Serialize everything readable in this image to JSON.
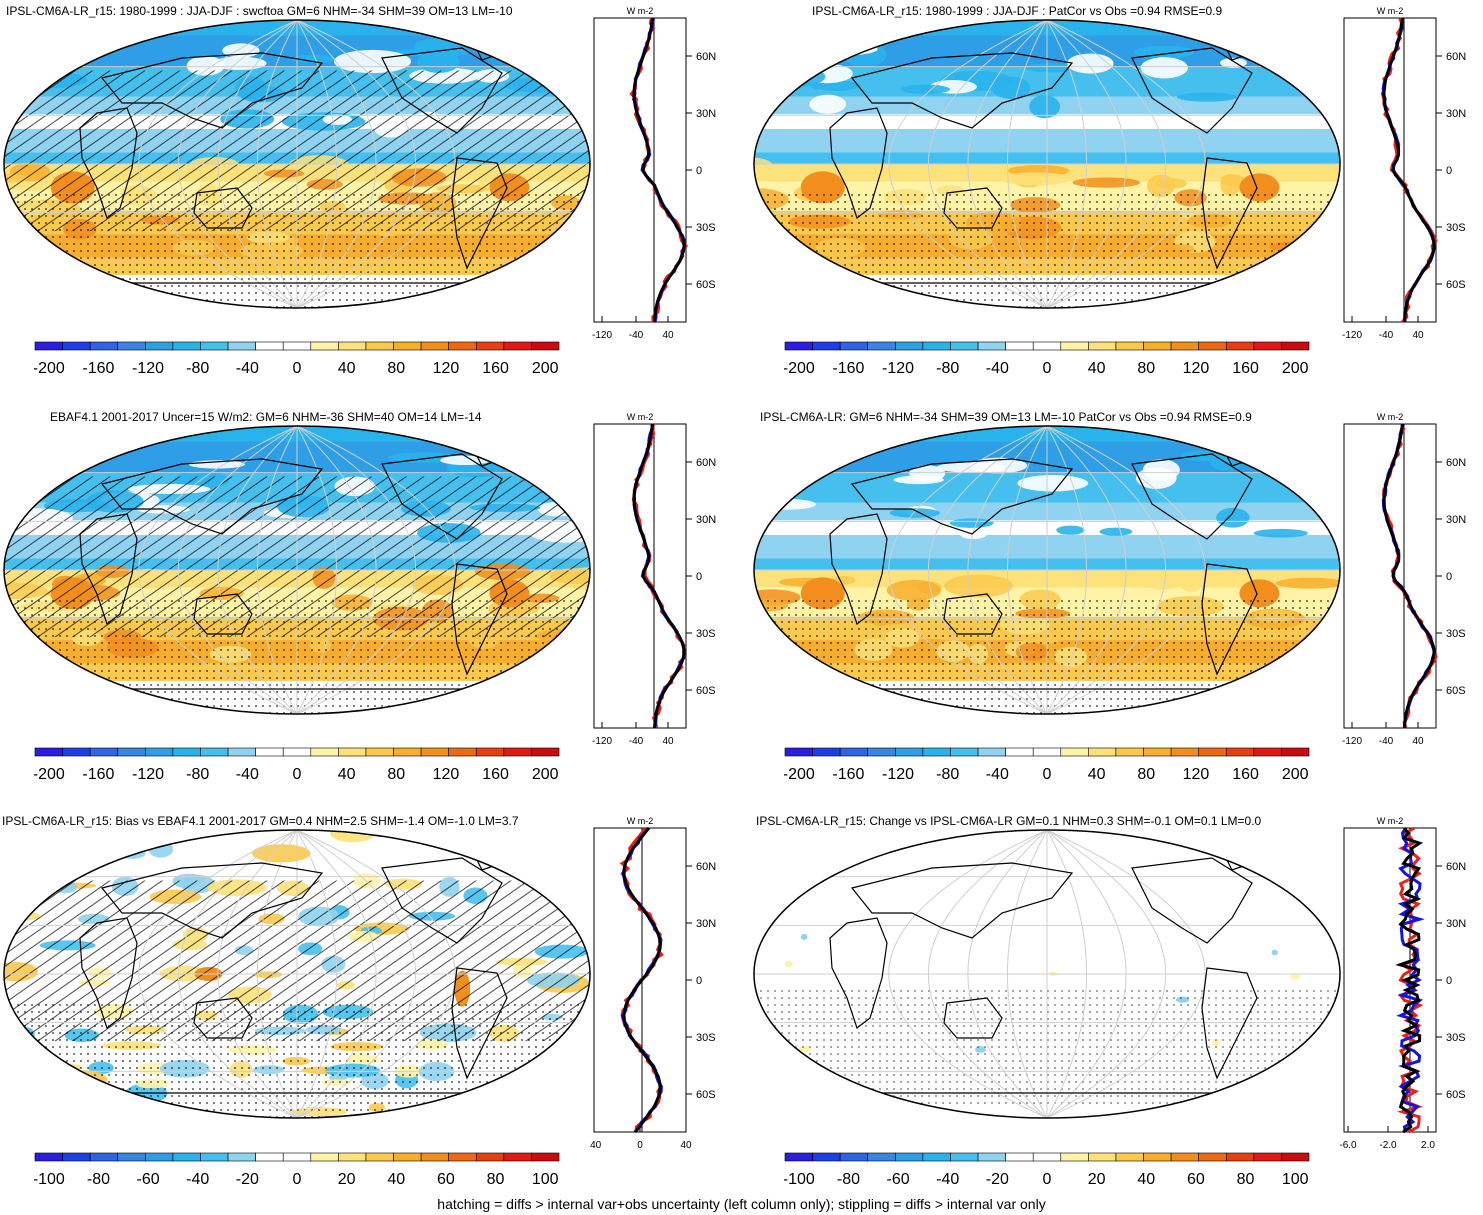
{
  "colors": {
    "scale": [
      "#2a1fe0",
      "#1f3fe6",
      "#2f64e4",
      "#3a85e2",
      "#2e9fe6",
      "#28b3ec",
      "#45c0ee",
      "#8fd3f0",
      "#ffffff",
      "#ffffff",
      "#fff3a8",
      "#fde17a",
      "#fbc94c",
      "#f8ae2c",
      "#f28e1c",
      "#ec6a14",
      "#e64012",
      "#df1a14",
      "#c80c10"
    ],
    "land_outline": "#000000",
    "graticule": "#cfcfcf",
    "series_red": "#e8201a",
    "series_blue": "#1414e0",
    "series_black": "#000000"
  },
  "panels": [
    {
      "id": "p1",
      "title": "IPSL-CM6A-LR_r15: 1980-1999 : JJA-DJF : swcftoa GM=6 NHM=-34 SHM=39 OM=13 LM=-10",
      "colorbar_labels": [
        "-200",
        "-160",
        "-120",
        "-80",
        "-40",
        "0",
        "40",
        "80",
        "120",
        "160",
        "200"
      ],
      "profile": {
        "unit": "W m-2",
        "x_ticks": [
          "-120",
          "-40",
          "40"
        ],
        "lat_labels": [
          "60N",
          "30N",
          "0",
          "30S",
          "60S"
        ]
      }
    },
    {
      "id": "p2",
      "title": "IPSL-CM6A-LR_r15: 1980-1999 : JJA-DJF : PatCor vs Obs =0.94 RMSE=0.9",
      "colorbar_labels": [
        "-200",
        "-160",
        "-120",
        "-80",
        "-40",
        "0",
        "40",
        "80",
        "120",
        "160",
        "200"
      ],
      "profile": {
        "unit": "W m-2",
        "x_ticks": [
          "-120",
          "-40",
          "40"
        ],
        "lat_labels": [
          "60N",
          "30N",
          "0",
          "30S",
          "60S"
        ]
      }
    },
    {
      "id": "p3",
      "title": "EBAF4.1 2001-2017 Uncer=15 W/m2: GM=6 NHM=-36 SHM=40 OM=14 LM=-14",
      "colorbar_labels": [
        "-200",
        "-160",
        "-120",
        "-80",
        "-40",
        "0",
        "40",
        "80",
        "120",
        "160",
        "200"
      ],
      "profile": {
        "unit": "W m-2",
        "x_ticks": [
          "-120",
          "-40",
          "40"
        ],
        "lat_labels": [
          "60N",
          "30N",
          "0",
          "30S",
          "60S"
        ]
      }
    },
    {
      "id": "p4",
      "title": "IPSL-CM6A-LR: GM=6 NHM=-34 SHM=39 OM=13 LM=-10 PatCor vs Obs =0.94 RMSE=0.9",
      "colorbar_labels": [
        "-200",
        "-160",
        "-120",
        "-80",
        "-40",
        "0",
        "40",
        "80",
        "120",
        "160",
        "200"
      ],
      "profile": {
        "unit": "W m-2",
        "x_ticks": [
          "-120",
          "-40",
          "40"
        ],
        "lat_labels": [
          "60N",
          "30N",
          "0",
          "30S",
          "60S"
        ]
      }
    },
    {
      "id": "p5",
      "title": "IPSL-CM6A-LR_r15: Bias vs EBAF4.1 2001-2017 GM=0.4 NHM=2.5 SHM=-1.4 OM=-1.0 LM=3.7",
      "colorbar_labels": [
        "-100",
        "-80",
        "-60",
        "-40",
        "-20",
        "0",
        "20",
        "40",
        "60",
        "80",
        "100"
      ],
      "profile": {
        "unit": "W m-2",
        "x_ticks": [
          "-40",
          "0",
          "40"
        ],
        "lat_labels": [
          "60N",
          "30N",
          "0",
          "30S",
          "60S"
        ]
      }
    },
    {
      "id": "p6",
      "title": "IPSL-CM6A-LR_r15: Change vs IPSL-CM6A-LR GM=0.1 NHM=0.3 SHM=-0.1 OM=0.1 LM=0.0",
      "colorbar_labels": [
        "-100",
        "-80",
        "-60",
        "-40",
        "-20",
        "0",
        "20",
        "40",
        "60",
        "80",
        "100"
      ],
      "profile": {
        "unit": "W m-2",
        "x_ticks": [
          "-6.0",
          "-2.0",
          "2.0"
        ],
        "lat_labels": [
          "60N",
          "30N",
          "0",
          "30S",
          "60S"
        ]
      }
    }
  ],
  "footer": "hatching = diffs > internal var+obs uncertainty (left column only); stippling = diffs > internal var only",
  "chart_data": [
    {
      "type": "heatmap",
      "title": "IPSL-CM6A-LR_r15: 1980-1999 : JJA-DJF : swcftoa GM=6 NHM=-34 SHM=39 OM=13 LM=-10",
      "stats": {
        "GM": 6,
        "NHM": -34,
        "SHM": 39,
        "OM": 13,
        "LM": -10
      },
      "colorbar": [
        -200,
        200
      ],
      "zonal_mean_profile": {
        "lat": [
          80,
          60,
          30,
          0,
          -30,
          -60,
          -80
        ],
        "x_ticks": [
          -120,
          -40,
          40
        ]
      }
    },
    {
      "type": "heatmap",
      "title": "IPSL-CM6A-LR_r15: 1980-1999 : JJA-DJF : PatCor vs Obs =0.94 RMSE=0.9",
      "stats": {
        "PatCor": 0.94,
        "RMSE": 0.9
      },
      "colorbar": [
        -200,
        200
      ],
      "zonal_mean_profile": {
        "lat": [
          80,
          60,
          30,
          0,
          -30,
          -60,
          -80
        ],
        "x_ticks": [
          -120,
          -40,
          40
        ]
      }
    },
    {
      "type": "heatmap",
      "title": "EBAF4.1 2001-2017 Uncer=15 W/m2: GM=6 NHM=-36 SHM=40 OM=14 LM=-14",
      "stats": {
        "Uncer": 15,
        "GM": 6,
        "NHM": -36,
        "SHM": 40,
        "OM": 14,
        "LM": -14
      },
      "colorbar": [
        -200,
        200
      ],
      "zonal_mean_profile": {
        "lat": [
          80,
          60,
          30,
          0,
          -30,
          -60,
          -80
        ],
        "x_ticks": [
          -120,
          -40,
          40
        ]
      }
    },
    {
      "type": "heatmap",
      "title": "IPSL-CM6A-LR: GM=6 NHM=-34 SHM=39 OM=13 LM=-10 PatCor vs Obs =0.94 RMSE=0.9",
      "stats": {
        "GM": 6,
        "NHM": -34,
        "SHM": 39,
        "OM": 13,
        "LM": -10,
        "PatCor": 0.94,
        "RMSE": 0.9
      },
      "colorbar": [
        -200,
        200
      ],
      "zonal_mean_profile": {
        "lat": [
          80,
          60,
          30,
          0,
          -30,
          -60,
          -80
        ],
        "x_ticks": [
          -120,
          -40,
          40
        ]
      }
    },
    {
      "type": "heatmap",
      "title": "IPSL-CM6A-LR_r15: Bias vs EBAF4.1 2001-2017 GM=0.4 NHM=2.5 SHM=-1.4 OM=-1.0 LM=3.7",
      "stats": {
        "GM": 0.4,
        "NHM": 2.5,
        "SHM": -1.4,
        "OM": -1.0,
        "LM": 3.7
      },
      "colorbar": [
        -100,
        100
      ],
      "zonal_mean_profile": {
        "lat": [
          80,
          60,
          30,
          0,
          -30,
          -60,
          -80
        ],
        "x_ticks": [
          -40,
          0,
          40
        ]
      }
    },
    {
      "type": "heatmap",
      "title": "IPSL-CM6A-LR_r15: Change vs IPSL-CM6A-LR GM=0.1 NHM=0.3 SHM=-0.1 OM=0.1 LM=0.0",
      "stats": {
        "GM": 0.1,
        "NHM": 0.3,
        "SHM": -0.1,
        "OM": 0.1,
        "LM": 0.0
      },
      "colorbar": [
        -100,
        100
      ],
      "zonal_mean_profile": {
        "lat": [
          80,
          60,
          30,
          0,
          -30,
          -60,
          -80
        ],
        "x_ticks": [
          -6.0,
          -2.0,
          2.0
        ]
      }
    }
  ]
}
